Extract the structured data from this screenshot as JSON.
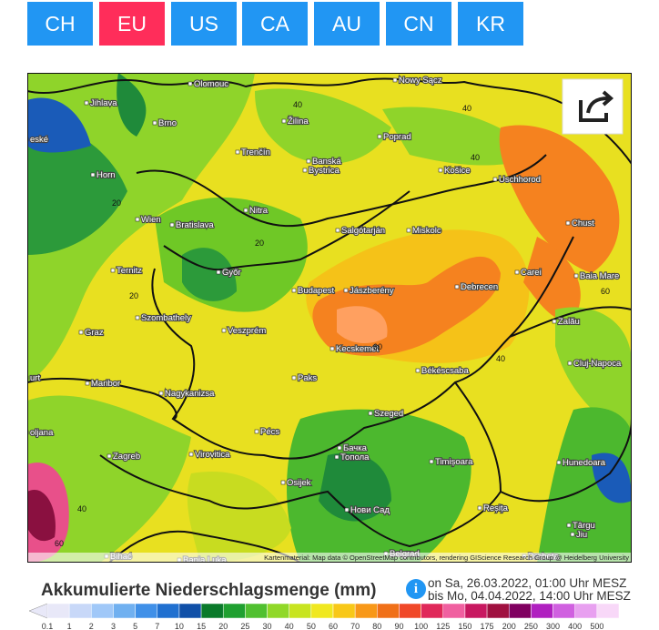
{
  "tabs": [
    "CH",
    "EU",
    "US",
    "CA",
    "AU",
    "CN",
    "KR"
  ],
  "active_tab": 1,
  "map": {
    "cities": [
      "Olomouc",
      "Nowy Sącz",
      "Jihlava",
      "Brno",
      "Žilina",
      "Poprad",
      "eské",
      "Trenčín",
      "Banská",
      "Bystrica",
      "Košice",
      "Uschhorod",
      "Horn",
      "Nitra",
      "Wien",
      "Bratislava",
      "Salgótarján",
      "Miskolc",
      "Chust",
      "Ternitz",
      "Győr",
      "Carei",
      "Baia Mare",
      "Budapest",
      "Jászberény",
      "Debrecen",
      "Szombathely",
      "Veszprém",
      "Zalău",
      "Graz",
      "Kecskemét",
      "Cluj-Napoca",
      "urt",
      "Maribor",
      "Paks",
      "Békéscsaba",
      "Nagykanizsa",
      "Szeged",
      "oljana",
      "Pécs",
      "Бачка",
      "Топола",
      "Timișoara",
      "Hunedoara",
      "Zagreb",
      "Virovitica",
      "Osijek",
      "Нови Сад",
      "Reșița",
      "Târgu",
      "Jiu",
      "Bihać",
      "Banja Luka",
      "Belgrad",
      "Drobeta"
    ],
    "contour_labels": [
      "40",
      "40",
      "20",
      "20",
      "20",
      "40",
      "60",
      "60",
      "40",
      "40",
      "60"
    ],
    "attribution": "Kartenmaterial: Map data © OpenStreetMap contributors, rendering GIScience Research Group @ Heidelberg University"
  },
  "legend": {
    "title": "Akkumulierte Niederschlagsmenge (mm)",
    "date_from": "on Sa, 26.03.2022, 01:00 Uhr MESZ",
    "date_to": "bis Mo, 04.04.2022, 14:00 Uhr MESZ",
    "scale": [
      "0.1",
      "1",
      "2",
      "3",
      "5",
      "7",
      "10",
      "15",
      "20",
      "25",
      "30",
      "40",
      "50",
      "60",
      "70",
      "80",
      "90",
      "100",
      "125",
      "150",
      "175",
      "200",
      "250",
      "300",
      "400",
      "500"
    ]
  }
}
